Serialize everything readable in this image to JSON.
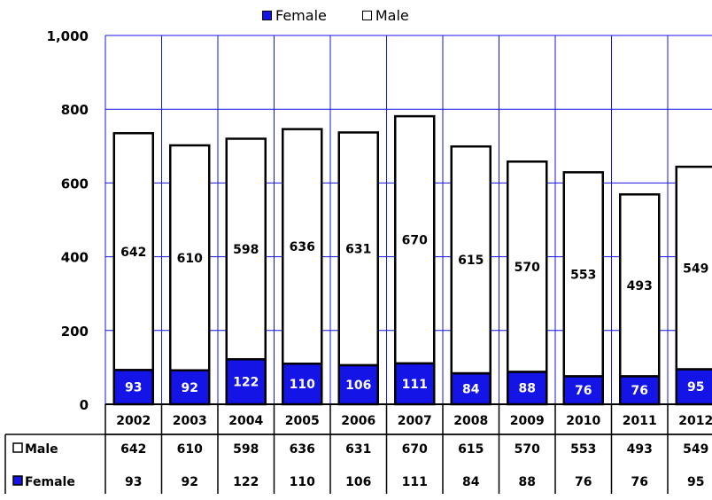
{
  "chart_data": {
    "type": "bar",
    "stacked": true,
    "categories": [
      "2002",
      "2003",
      "2004",
      "2005",
      "2006",
      "2007",
      "2008",
      "2009",
      "2010",
      "2011",
      "2012"
    ],
    "series": [
      {
        "name": "Female",
        "values": [
          93,
          92,
          122,
          110,
          106,
          111,
          84,
          88,
          76,
          76,
          95
        ],
        "color": "#1414e6"
      },
      {
        "name": "Male",
        "values": [
          642,
          610,
          598,
          636,
          631,
          670,
          615,
          570,
          553,
          493,
          549
        ],
        "color": "#ffffff"
      }
    ],
    "ylim": [
      0,
      1000
    ],
    "yticks": [
      "0",
      "200",
      "400",
      "600",
      "800",
      "1,000"
    ],
    "grid": true,
    "grid_color": "#1414e6",
    "legend_position": "top",
    "data_table": true,
    "table_rows": [
      {
        "label": "Male",
        "series": "Male"
      },
      {
        "label": "Female",
        "series": "Female"
      }
    ]
  }
}
